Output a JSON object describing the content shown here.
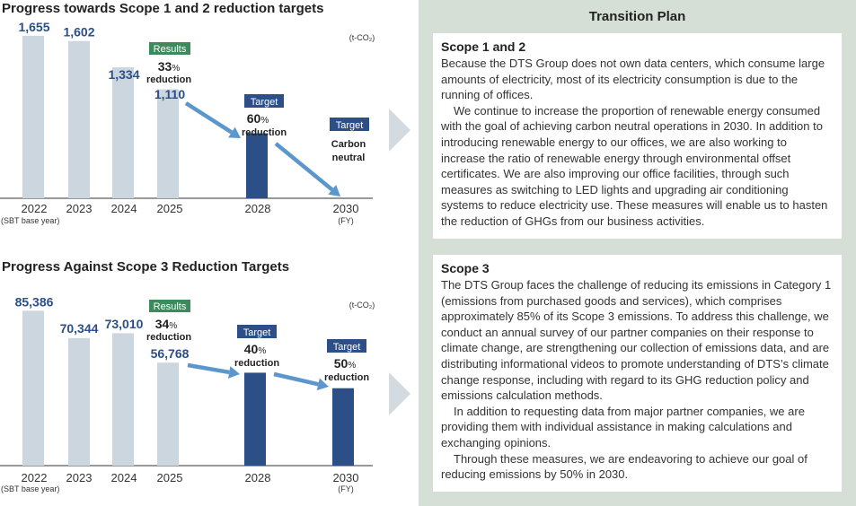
{
  "chart_data": [
    {
      "type": "bar",
      "title": "Progress towards Scope 1 and 2 reduction targets",
      "unit": "(t-CO₂)",
      "categories": [
        "2022",
        "2023",
        "2024",
        "2025",
        "2028",
        "2030"
      ],
      "category_notes": {
        "first": "(SBT base year)",
        "last": "(FY)"
      },
      "values": [
        1655,
        1602,
        1334,
        1110,
        662,
        0
      ],
      "value_labels": [
        "1,655",
        "1,602",
        "1,334",
        "1,110",
        "",
        ""
      ],
      "ylim": [
        0,
        1800
      ],
      "results_badge": "Results",
      "results_pct": "33",
      "results_word": "reduction",
      "targets": [
        {
          "badge": "Target",
          "line1": "60",
          "pct": "%",
          "line2": "reduction"
        },
        {
          "badge": "Target",
          "line1": "Carbon",
          "pct": "",
          "line2": "neutral"
        }
      ],
      "colors": {
        "actual": "#ccd6df",
        "target": "#2b4f86",
        "arrow": "#5b97cc",
        "results_badge": "#3d8b5c",
        "target_badge": "#2b4f86"
      }
    },
    {
      "type": "bar",
      "title": "Progress Against Scope 3 Reduction Targets",
      "unit": "(t-CO₂)",
      "categories": [
        "2022",
        "2023",
        "2024",
        "2025",
        "2028",
        "2030"
      ],
      "category_notes": {
        "first": "(SBT base year)",
        "last": "(FY)"
      },
      "values": [
        85386,
        70344,
        73010,
        56768,
        51232,
        42693
      ],
      "value_labels": [
        "85,386",
        "70,344",
        "73,010",
        "56,768",
        "",
        ""
      ],
      "ylim": [
        0,
        93000
      ],
      "results_badge": "Results",
      "results_pct": "34",
      "results_word": "reduction",
      "targets": [
        {
          "badge": "Target",
          "line1": "40",
          "pct": "%",
          "line2": "reduction"
        },
        {
          "badge": "Target",
          "line1": "50",
          "pct": "%",
          "line2": "reduction"
        }
      ],
      "colors": {
        "actual": "#ccd6df",
        "target": "#2b4f86",
        "arrow": "#5b97cc",
        "results_badge": "#3d8b5c",
        "target_badge": "#2b4f86"
      }
    }
  ],
  "plan": {
    "title": "Transition Plan",
    "scope12": {
      "heading": "Scope 1 and 2",
      "p1": "Because the DTS Group does not own data centers, which consume large amounts of electricity, most of its electricity consumption is due to the running of offices.",
      "p2": "We continue to increase the proportion of renewable energy consumed with the goal of achieving carbon neutral operations in 2030. In addition to introducing renewable energy to our offices, we are also working to increase the ratio of renewable energy through environmental offset certificates. We are also improving our office facilities, through such measures as switching to LED lights and upgrading air conditioning systems to reduce electricity use. These measures will enable us to hasten the reduction of GHGs from our business activities."
    },
    "scope3": {
      "heading": "Scope 3",
      "p1": "The DTS Group faces the challenge of reducing its emissions in Category 1 (emissions from purchased goods and services), which comprises approximately 85% of its Scope 3 emissions. To address this challenge, we conduct an annual survey of our partner companies on their response to climate change, are strengthening our collection of emissions data, and are distributing informational videos to promote understanding of DTS’s climate change response, including with regard to its GHG reduction policy and emissions calculation methods.",
      "p2": "In addition to requesting data from major partner companies, we are providing them with individual assistance in making calculations and exchanging opinions.",
      "p3": "Through these measures, we are endeavoring to achieve our goal of reducing emissions by 50% in 2030."
    }
  },
  "icons": {
    "chevron": "chevron-right-icon",
    "arrow": "trend-arrow-icon"
  }
}
